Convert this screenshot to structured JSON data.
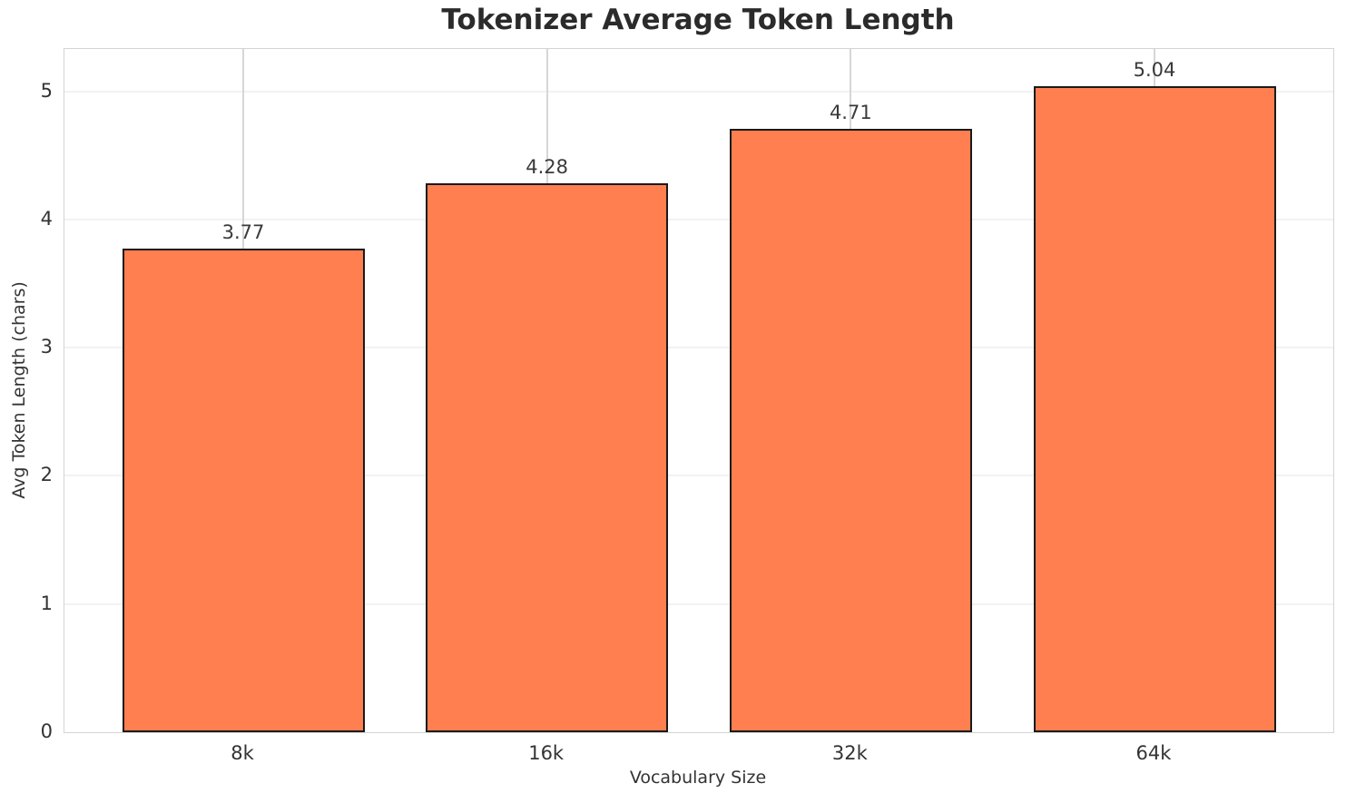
{
  "chart_data": {
    "type": "bar",
    "title": "Tokenizer Average Token Length",
    "xlabel": "Vocabulary Size",
    "ylabel": "Avg Token Length (chars)",
    "categories": [
      "8k",
      "16k",
      "32k",
      "64k"
    ],
    "values": [
      3.77,
      4.28,
      4.71,
      5.04
    ],
    "value_labels": [
      "3.77",
      "4.28",
      "4.71",
      "5.04"
    ],
    "yticks": [
      "0",
      "1",
      "2",
      "3",
      "4",
      "5"
    ],
    "ylim": [
      0,
      5.33
    ],
    "grid": "on",
    "legend": "none",
    "colors": {
      "bar_fill": "#FF7F50",
      "bar_edge": "#1a1a1a",
      "grid_h": "#f2f2f2",
      "grid_v": "#d6d6d6",
      "spine": "#d4d4d4",
      "text": "#333333",
      "title": "#2b2b2b"
    }
  }
}
